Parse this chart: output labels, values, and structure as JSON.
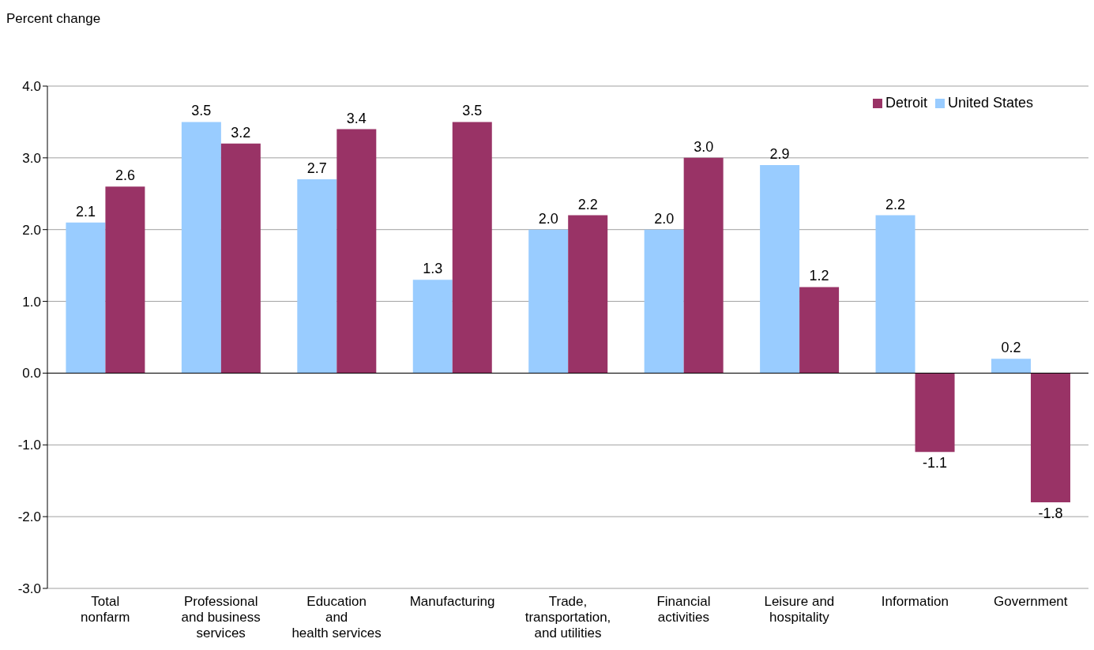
{
  "chart_data": {
    "type": "bar",
    "ylabel": "Percent change",
    "categories": [
      "Total\nnonfarm",
      "Professional\nand business\nservices",
      "Education\nand\nhealth services",
      "Manufacturing",
      "Trade,\ntransportation,\nand utilities",
      "Financial\nactivities",
      "Leisure and\nhospitality",
      "Information",
      "Government"
    ],
    "series": [
      {
        "name": "United States",
        "color": "#99ccff",
        "values": [
          2.1,
          3.5,
          2.7,
          1.3,
          2.0,
          2.0,
          2.9,
          2.2,
          0.2
        ],
        "value_labels": [
          "2.1",
          "3.5",
          "2.7",
          "1.3",
          "2.0",
          "2.0",
          "2.9",
          "2.2",
          "0.2"
        ]
      },
      {
        "name": "Detroit",
        "color": "#993366",
        "values": [
          2.6,
          3.2,
          3.4,
          3.5,
          2.2,
          3.0,
          1.2,
          -1.1,
          -1.8
        ],
        "value_labels": [
          "2.6",
          "3.2",
          "3.4",
          "3.5",
          "2.2",
          "3.0",
          "1.2",
          "-1.1",
          "-1.8"
        ]
      }
    ],
    "ylim": [
      -3,
      4
    ],
    "yticks": [
      {
        "value": -3,
        "label": "-3.0"
      },
      {
        "value": -2,
        "label": "-2.0"
      },
      {
        "value": -1,
        "label": "-1.0"
      },
      {
        "value": 0,
        "label": "0.0"
      },
      {
        "value": 1,
        "label": "1.0"
      },
      {
        "value": 2,
        "label": "2.0"
      },
      {
        "value": 3,
        "label": "3.0"
      },
      {
        "value": 4,
        "label": "4.0"
      }
    ],
    "grid": "y",
    "legend": "top right"
  }
}
